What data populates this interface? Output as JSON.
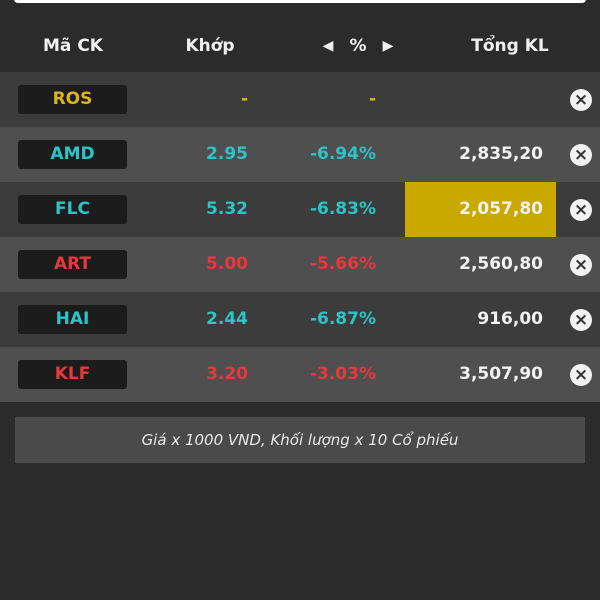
{
  "header": {
    "symbol": "Mã CK",
    "price": "Khớp",
    "change": "%",
    "volume": "Tổng KL"
  },
  "rows": [
    {
      "symbol": "ROS",
      "price": "-",
      "change": "-",
      "volume": "",
      "color": "#d9b523"
    },
    {
      "symbol": "AMD",
      "price": "2.95",
      "change": "-6.94%",
      "volume": "2,835,20",
      "color": "#2cc4c8"
    },
    {
      "symbol": "FLC",
      "price": "5.32",
      "change": "-6.83%",
      "volume": "2,057,80",
      "color": "#2cc4c8",
      "highlight": "#c9a900"
    },
    {
      "symbol": "ART",
      "price": "5.00",
      "change": "-5.66%",
      "volume": "2,560,80",
      "color": "#e8383d"
    },
    {
      "symbol": "HAI",
      "price": "2.44",
      "change": "-6.87%",
      "volume": "916,00",
      "color": "#2cc4c8"
    },
    {
      "symbol": "KLF",
      "price": "3.20",
      "change": "-3.03%",
      "volume": "3,507,90",
      "color": "#e8383d"
    }
  ],
  "note": "Giá x 1000 VND, Khối lượng x 10 Cổ phiếu"
}
